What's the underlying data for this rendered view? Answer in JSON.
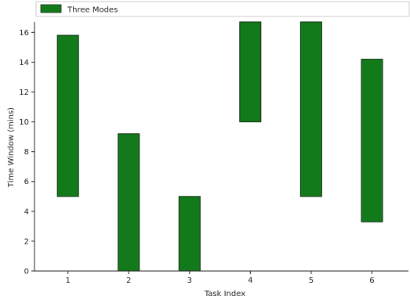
{
  "chart_data": {
    "type": "bar",
    "subtype": "floating-range",
    "legend": {
      "label": "Three Modes",
      "placement": "top-left"
    },
    "xlabel": "Task Index",
    "ylabel": "Time Window (mins)",
    "categories": [
      "1",
      "2",
      "3",
      "4",
      "5",
      "6"
    ],
    "x": [
      1,
      2,
      3,
      4,
      5,
      6
    ],
    "series": [
      {
        "name": "Three Modes",
        "ranges": [
          [
            5.0,
            15.8
          ],
          [
            0.0,
            9.2
          ],
          [
            0.0,
            5.0
          ],
          [
            10.0,
            16.7
          ],
          [
            5.0,
            16.7
          ],
          [
            3.3,
            14.2
          ]
        ]
      }
    ],
    "xlim": [
      0.45,
      6.6
    ],
    "ylim": [
      0,
      16.7
    ],
    "yticks": [
      0,
      2,
      4,
      6,
      8,
      10,
      12,
      14,
      16
    ],
    "xticks": [
      1,
      2,
      3,
      4,
      5,
      6
    ],
    "grid": false,
    "colors": {
      "bar_fill": "#137a1b",
      "bar_edge": "#0b2a0b",
      "axis": "#222222"
    }
  }
}
